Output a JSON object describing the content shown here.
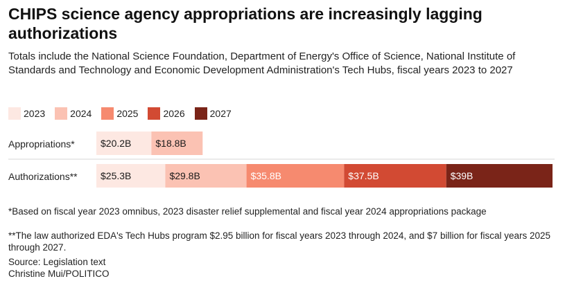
{
  "title": "CHIPS science agency appropriations are increasingly lagging authorizations",
  "subtitle": "Totals include the National Science Foundation, Department of Energy's Office of Science, National Institute of Standards and Technology and Economic Development Administration's Tech Hubs, fiscal years 2023 to 2027",
  "footnotes": {
    "note1": "*Based on fiscal year 2023 omnibus, 2023 disaster relief supplemental and fiscal year 2024 appropriations package",
    "note2": "**The law authorized EDA's Tech Hubs program $2.95 billion for fiscal years 2023 through 2024, and $7 billion for fiscal years 2025 through 2027.",
    "source": "Source: Legislation text",
    "credit": "Christine Mui/POLITICO"
  },
  "chart_data": {
    "type": "bar",
    "orientation": "horizontal",
    "stacked": true,
    "categories": [
      "Appropriations*",
      "Authorizations**"
    ],
    "series": [
      {
        "name": "2023",
        "color": "#fde8e2",
        "values": [
          20.2,
          25.3
        ],
        "labels": [
          "$20.2B",
          "$25.3B"
        ]
      },
      {
        "name": "2024",
        "color": "#fbc2b3",
        "values": [
          18.8,
          29.8
        ],
        "labels": [
          "$18.8B",
          "$29.8B"
        ]
      },
      {
        "name": "2025",
        "color": "#f68a6f",
        "values": [
          null,
          35.8
        ],
        "labels": [
          null,
          "$35.8B"
        ]
      },
      {
        "name": "2026",
        "color": "#d24a33",
        "values": [
          null,
          37.5
        ],
        "labels": [
          null,
          "$37.5B"
        ]
      },
      {
        "name": "2027",
        "color": "#7a2418",
        "values": [
          null,
          39.0
        ],
        "labels": [
          null,
          "$39B"
        ]
      }
    ],
    "legend_position": "top-left",
    "grid": false
  }
}
